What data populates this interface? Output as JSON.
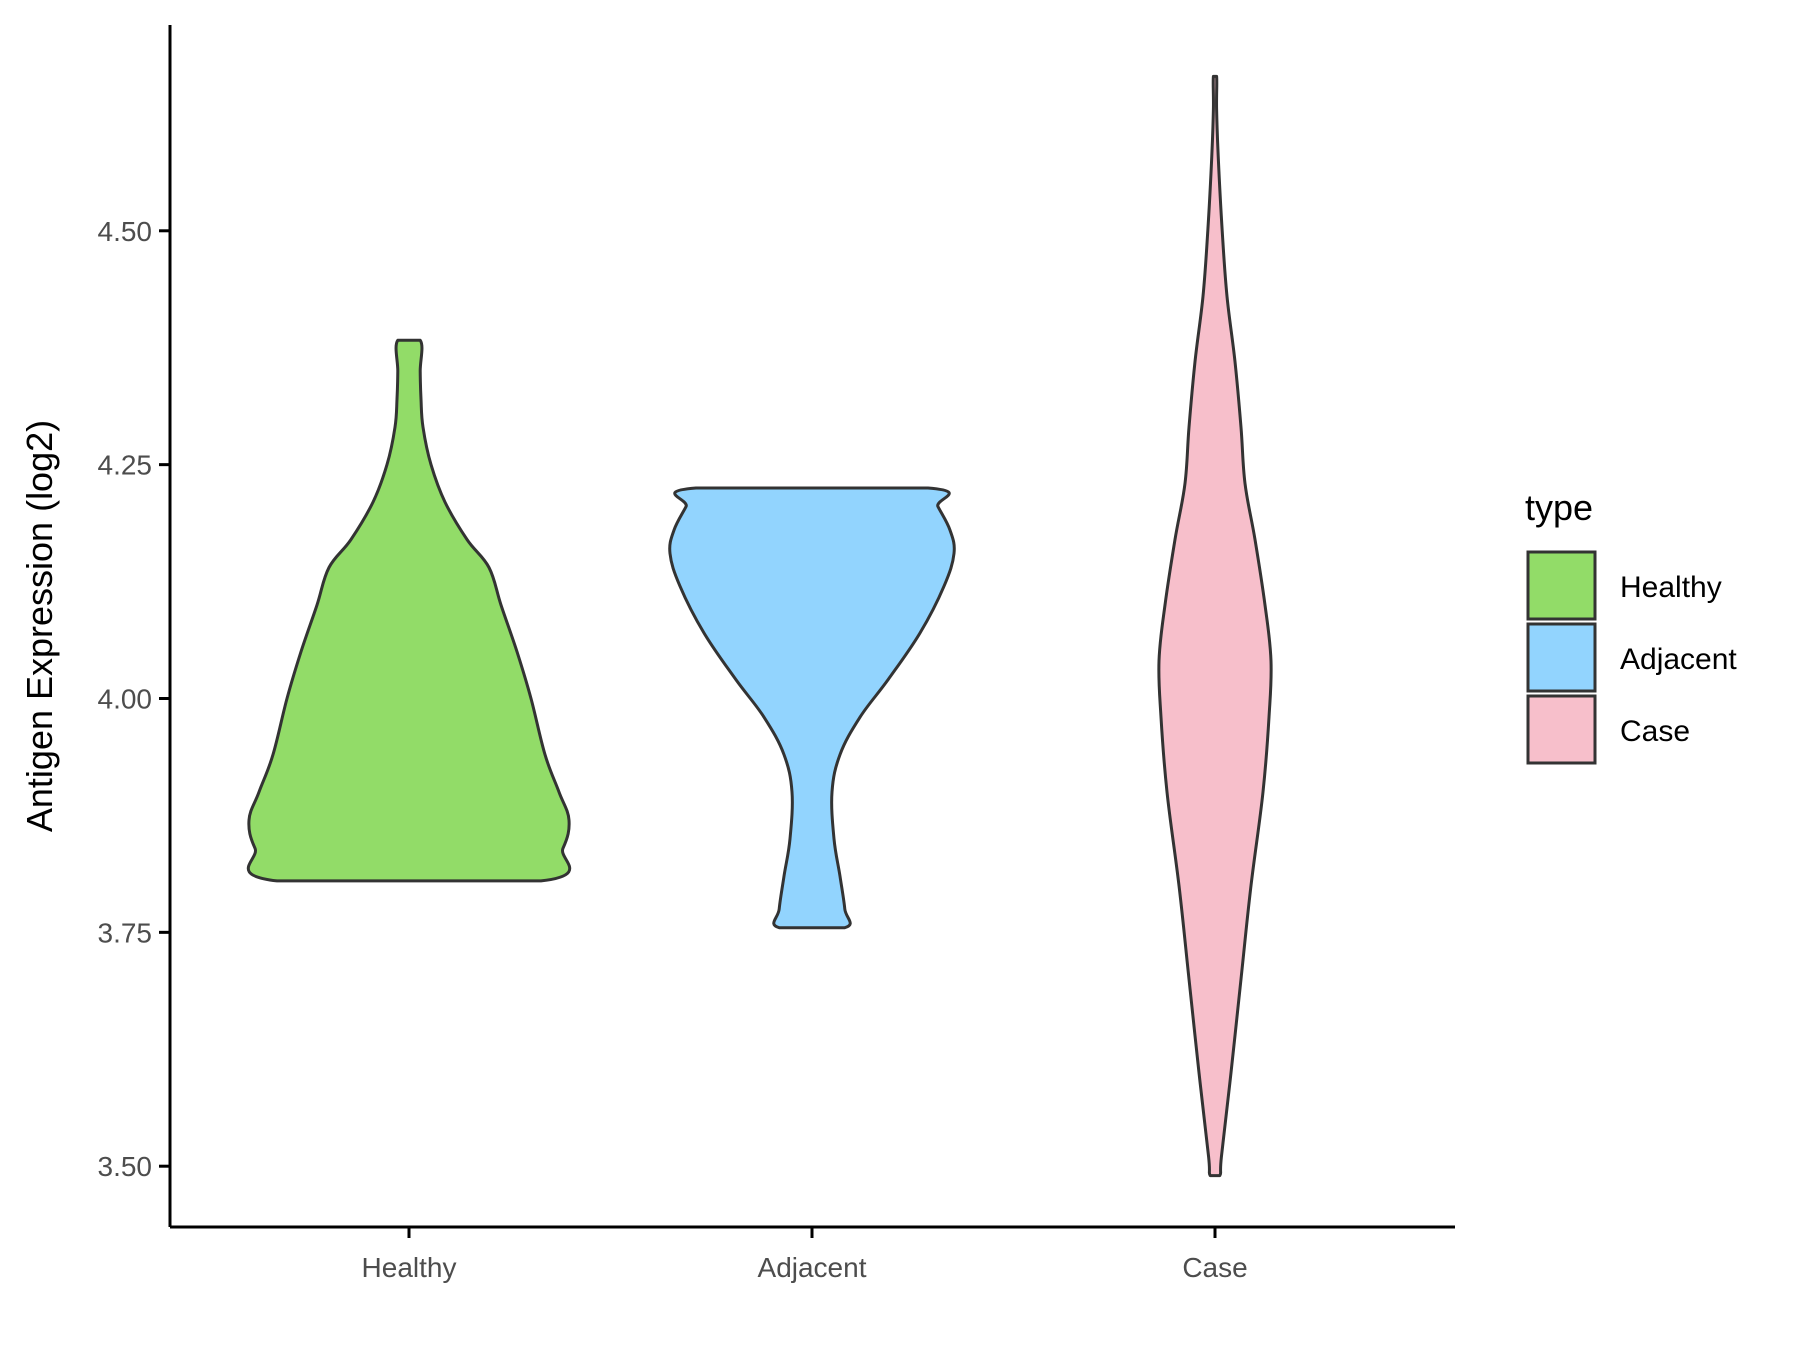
{
  "chart_data": {
    "type": "violin",
    "title": "",
    "xlabel": "",
    "ylabel": "Antigen Expression (log2)",
    "categories": [
      "Healthy",
      "Adjacent",
      "Case"
    ],
    "ylim": [
      3.435,
      4.72
    ],
    "yticks": [
      3.5,
      3.75,
      4.0,
      4.25,
      4.5
    ],
    "ytick_labels": [
      "3.50",
      "3.75",
      "4.00",
      "4.25",
      "4.50"
    ],
    "grid": false,
    "legend": {
      "title": "type",
      "position": "right",
      "entries": [
        "Healthy",
        "Adjacent",
        "Case"
      ]
    },
    "colors": {
      "Healthy": "#92dc68",
      "Adjacent": "#92d4fe",
      "Case": "#f7bfcb",
      "outline": "#333333",
      "axis": "#000000"
    },
    "series": [
      {
        "category": "Healthy",
        "min": 3.805,
        "max": 4.383,
        "density": [
          [
            3.805,
            0.33
          ],
          [
            3.84,
            0.385
          ],
          [
            3.87,
            0.4
          ],
          [
            3.9,
            0.375
          ],
          [
            3.94,
            0.34
          ],
          [
            4.0,
            0.305
          ],
          [
            4.05,
            0.27
          ],
          [
            4.1,
            0.23
          ],
          [
            4.14,
            0.2
          ],
          [
            4.17,
            0.145
          ],
          [
            4.21,
            0.09
          ],
          [
            4.25,
            0.055
          ],
          [
            4.29,
            0.035
          ],
          [
            4.32,
            0.03
          ],
          [
            4.35,
            0.028
          ],
          [
            4.383,
            0.028
          ]
        ]
      },
      {
        "category": "Adjacent",
        "min": 3.755,
        "max": 4.225,
        "density": [
          [
            3.755,
            0.082
          ],
          [
            3.775,
            0.082
          ],
          [
            3.81,
            0.07
          ],
          [
            3.85,
            0.055
          ],
          [
            3.9,
            0.05
          ],
          [
            3.94,
            0.07
          ],
          [
            3.98,
            0.12
          ],
          [
            4.02,
            0.19
          ],
          [
            4.07,
            0.27
          ],
          [
            4.12,
            0.33
          ],
          [
            4.155,
            0.355
          ],
          [
            4.18,
            0.345
          ],
          [
            4.205,
            0.315
          ],
          [
            4.225,
            0.29
          ]
        ]
      },
      {
        "category": "Case",
        "min": 3.49,
        "max": 4.665,
        "density": [
          [
            3.49,
            0.012
          ],
          [
            3.51,
            0.016
          ],
          [
            3.6,
            0.04
          ],
          [
            3.7,
            0.065
          ],
          [
            3.8,
            0.09
          ],
          [
            3.9,
            0.12
          ],
          [
            3.98,
            0.135
          ],
          [
            4.04,
            0.14
          ],
          [
            4.1,
            0.125
          ],
          [
            4.17,
            0.1
          ],
          [
            4.23,
            0.075
          ],
          [
            4.29,
            0.065
          ],
          [
            4.36,
            0.05
          ],
          [
            4.43,
            0.03
          ],
          [
            4.5,
            0.018
          ],
          [
            4.58,
            0.008
          ],
          [
            4.63,
            0.004
          ],
          [
            4.665,
            0.004
          ]
        ]
      }
    ]
  }
}
